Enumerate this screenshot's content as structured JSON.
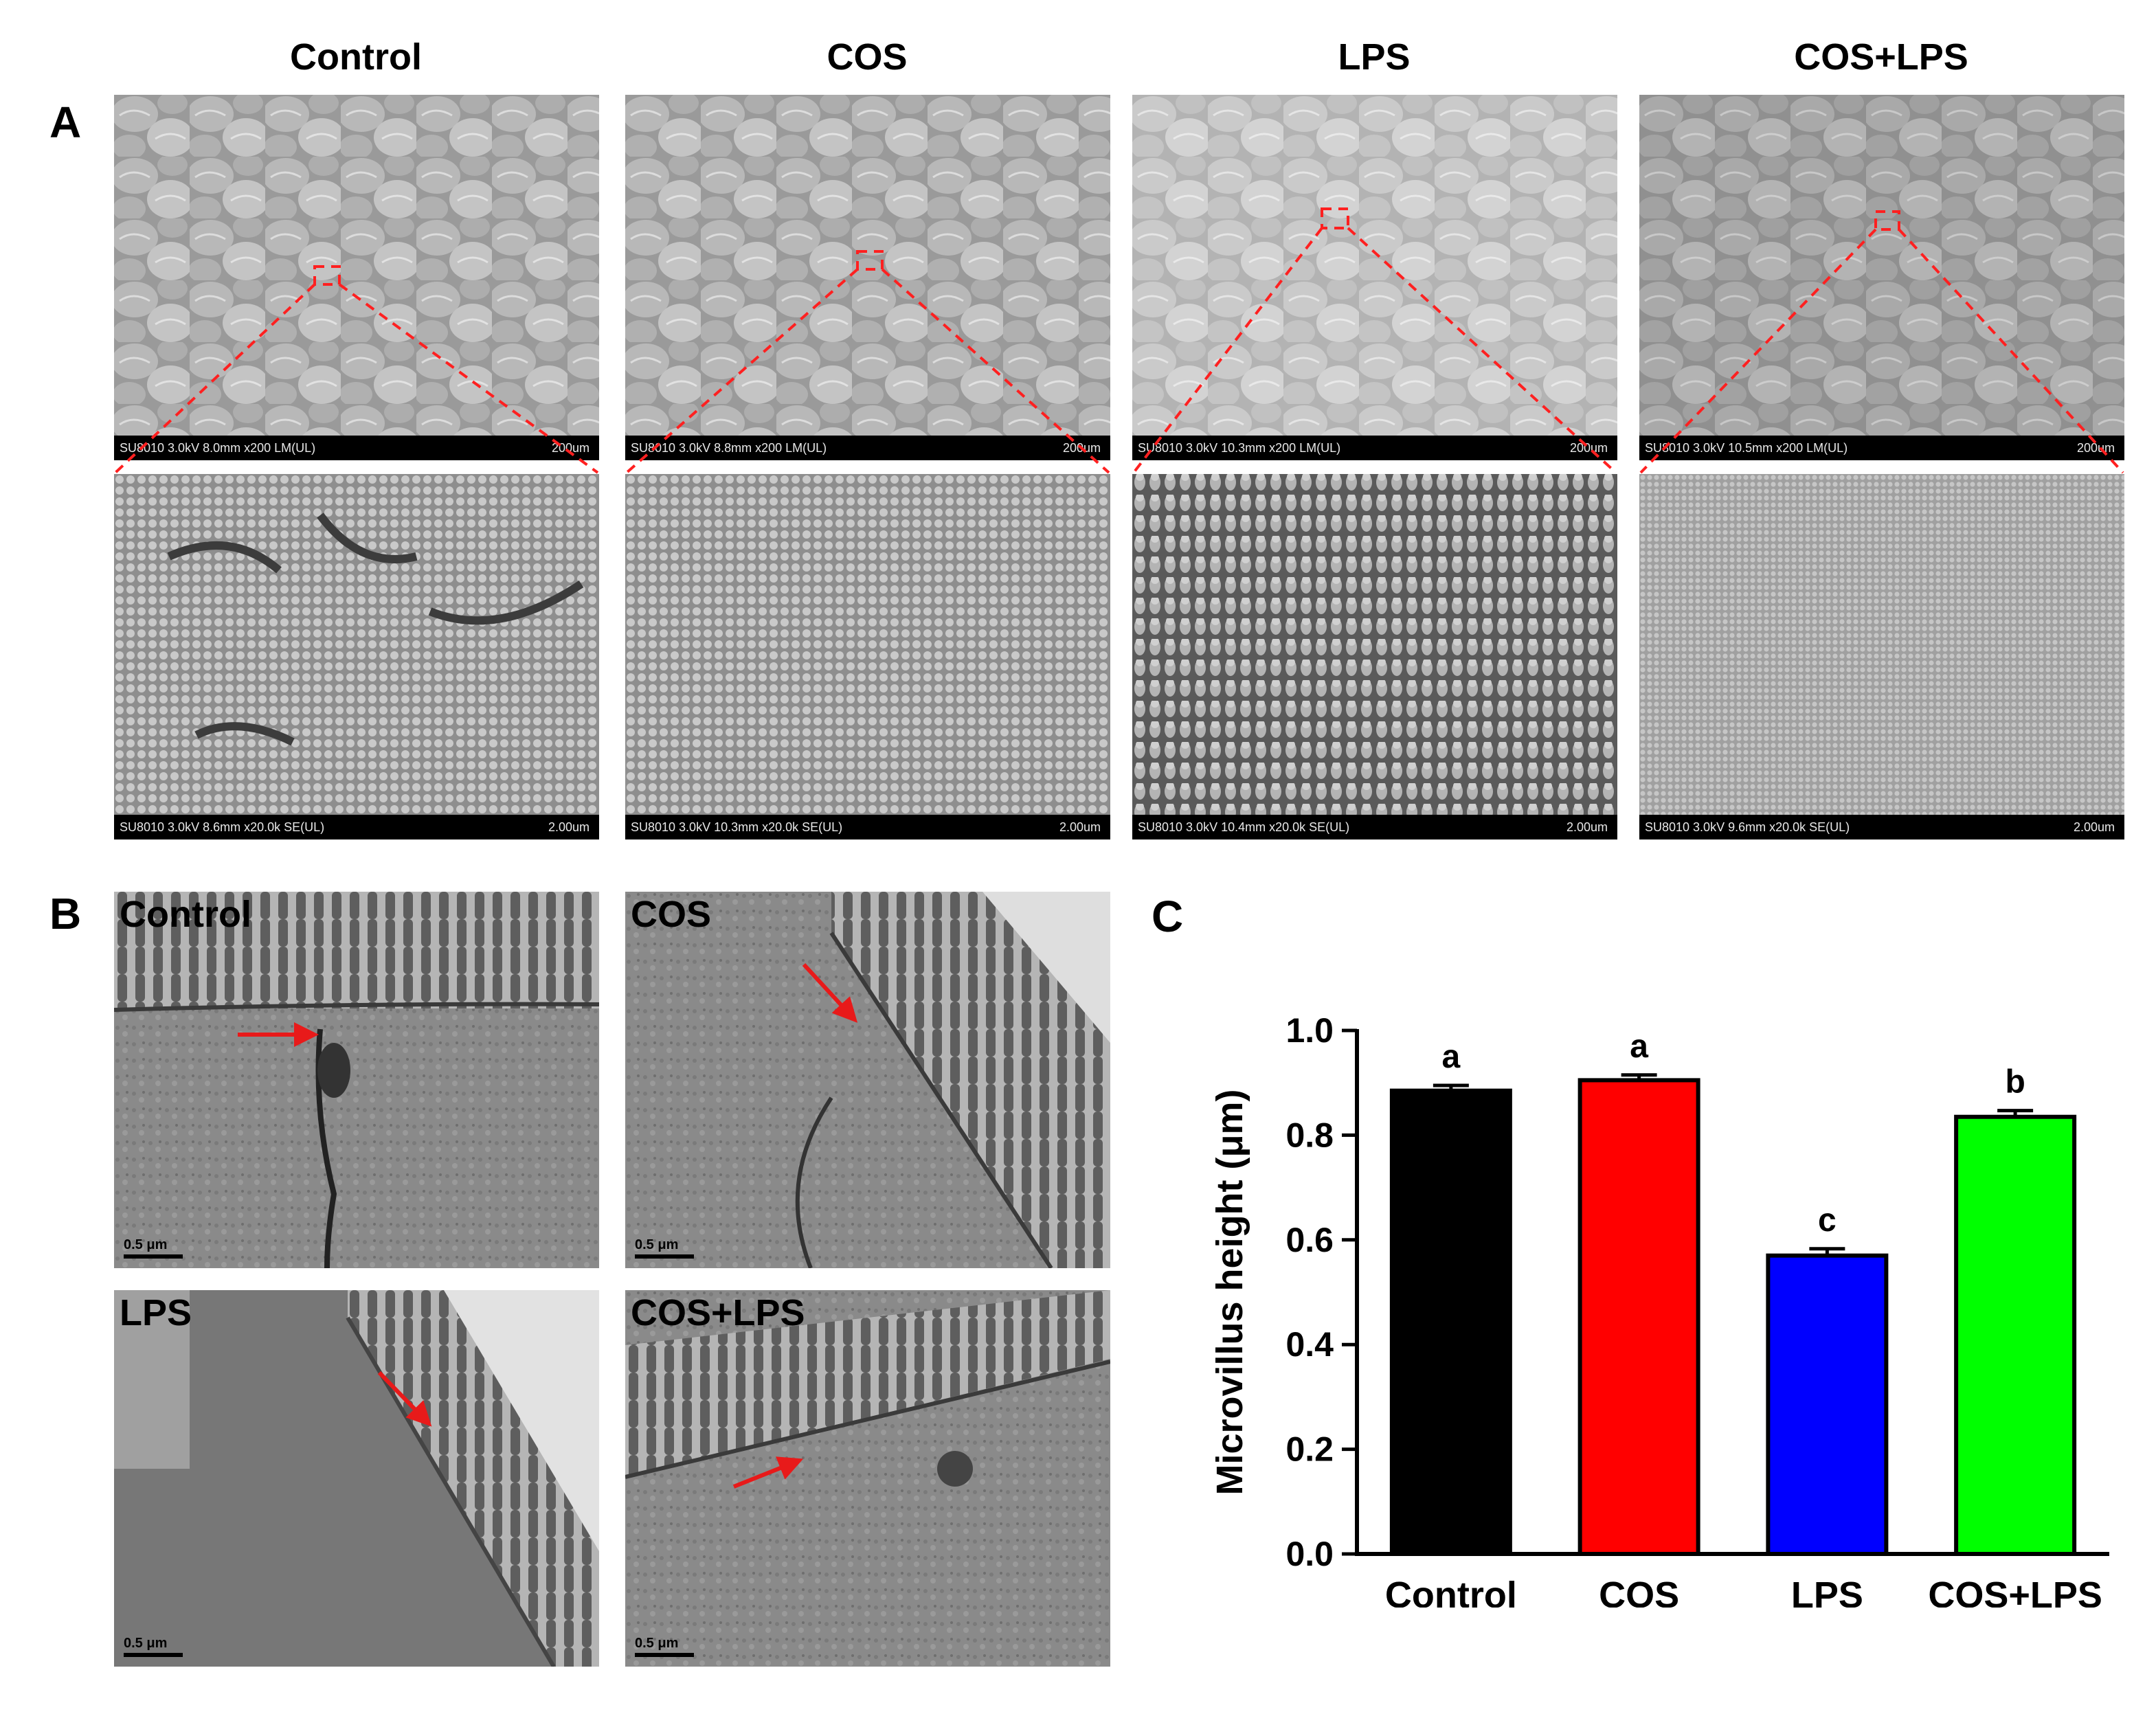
{
  "panel_labels": {
    "a": "A",
    "b": "B",
    "c": "C"
  },
  "column_titles": [
    "Control",
    "COS",
    "LPS",
    "COS+LPS"
  ],
  "sem_low": [
    {
      "info": "SU8010 3.0kV 8.0mm x200 LM(UL)",
      "scale": "200um"
    },
    {
      "info": "SU8010 3.0kV 8.8mm x200 LM(UL)",
      "scale": "200um"
    },
    {
      "info": "SU8010 3.0kV 10.3mm x200 LM(UL)",
      "scale": "200um"
    },
    {
      "info": "SU8010 3.0kV 10.5mm x200 LM(UL)",
      "scale": "200um"
    }
  ],
  "sem_high": [
    {
      "info": "SU8010 3.0kV 8.6mm x20.0k SE(UL)",
      "scale": "2.00um"
    },
    {
      "info": "SU8010 3.0kV 10.3mm x20.0k SE(UL)",
      "scale": "2.00um"
    },
    {
      "info": "SU8010 3.0kV 10.4mm x20.0k SE(UL)",
      "scale": "2.00um"
    },
    {
      "info": "SU8010 3.0kV 9.6mm x20.0k SE(UL)",
      "scale": "2.00um"
    }
  ],
  "tem": [
    {
      "label": "Control",
      "scale": "0.5 μm"
    },
    {
      "label": "COS",
      "scale": "0.5 μm"
    },
    {
      "label": "LPS",
      "scale": "0.5 μm"
    },
    {
      "label": "COS+LPS",
      "scale": "0.5 μm"
    }
  ],
  "colors": {
    "zoom_lines": "#ff2020",
    "arrow": "#e81a1a"
  },
  "chart_data": {
    "type": "bar",
    "categories": [
      "Control",
      "COS",
      "LPS",
      "COS+LPS"
    ],
    "values": [
      0.885,
      0.905,
      0.57,
      0.835
    ],
    "errors": [
      0.01,
      0.01,
      0.013,
      0.012
    ],
    "significance": [
      "a",
      "a",
      "c",
      "b"
    ],
    "colors": [
      "#000000",
      "#ff0000",
      "#0000ff",
      "#00ff00"
    ],
    "ylabel": "Microvillus height (μm)",
    "xlabel": "",
    "ylim": [
      0.0,
      1.0
    ],
    "yticks": [
      "0.0",
      "0.2",
      "0.4",
      "0.6",
      "0.8",
      "1.0"
    ],
    "grid": false
  }
}
